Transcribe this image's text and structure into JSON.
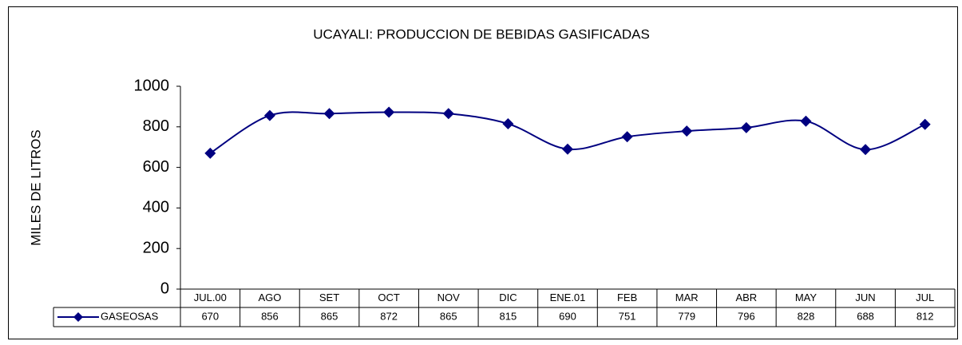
{
  "chart_data": {
    "type": "line",
    "title": "UCAYALI: PRODUCCION DE BEBIDAS GASIFICADAS",
    "y_label": "MILES DE LITROS",
    "categories": [
      "JUL.00",
      "AGO",
      "SET",
      "OCT",
      "NOV",
      "DIC",
      "ENE.01",
      "FEB",
      "MAR",
      "ABR",
      "MAY",
      "JUN",
      "JUL"
    ],
    "series": [
      {
        "name": "GASEOSAS",
        "color": "#000080",
        "values": [
          670,
          856,
          865,
          872,
          865,
          815,
          690,
          751,
          779,
          796,
          828,
          688,
          812
        ]
      }
    ],
    "ylim": [
      0,
      1000
    ],
    "yticks": [
      0,
      200,
      400,
      600,
      800,
      1000
    ],
    "grid": false,
    "smooth": true,
    "data_table": true
  }
}
